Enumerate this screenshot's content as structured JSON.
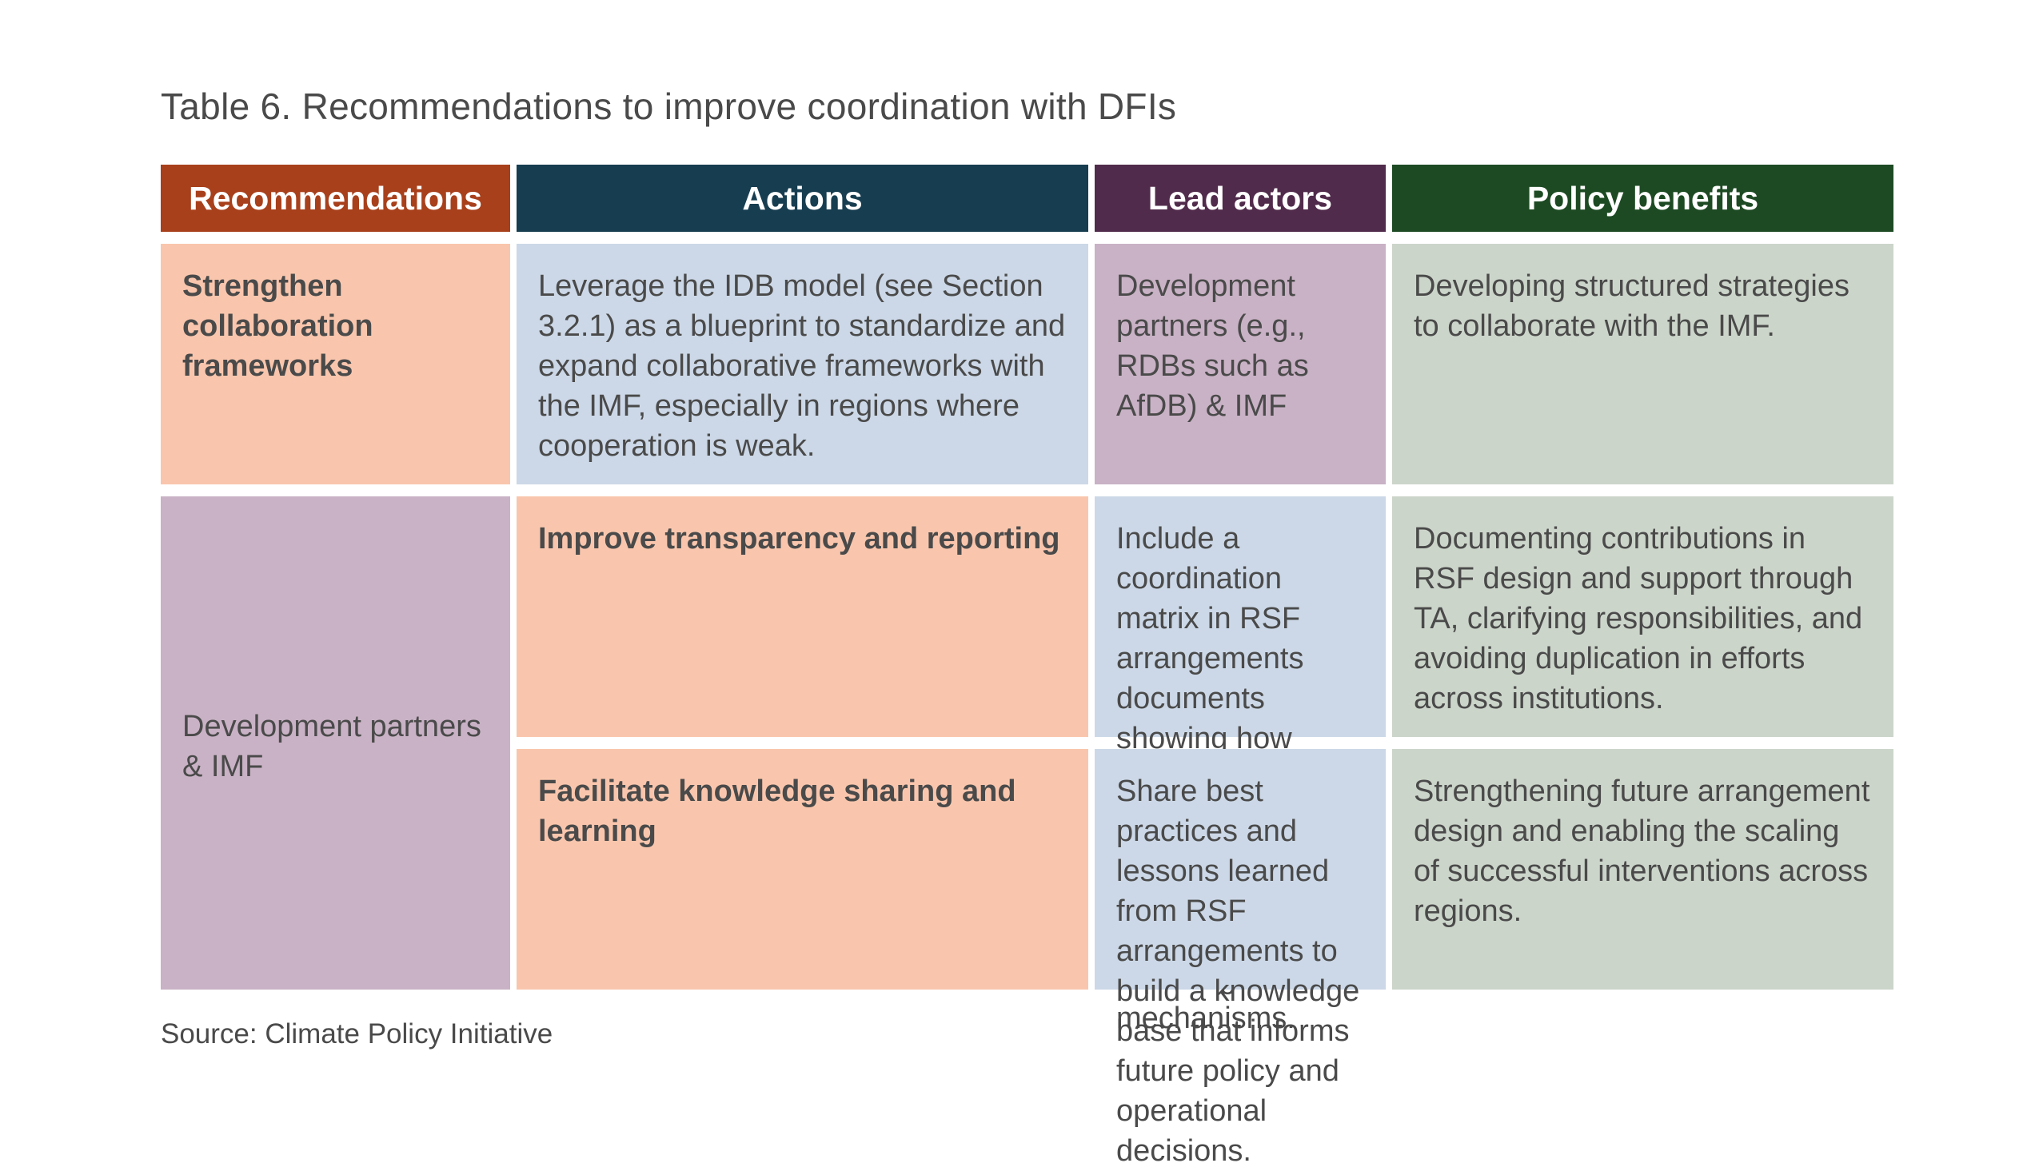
{
  "title": "Table 6. Recommendations to improve coordination with DFIs",
  "headers": {
    "recommendations": "Recommendations",
    "actions": "Actions",
    "lead_actors": "Lead actors",
    "policy_benefits": "Policy benefits"
  },
  "rows": [
    {
      "recommendation": "Strengthen collaboration frameworks",
      "action": "Leverage the IDB model (see Section 3.2.1) as a blueprint to standardize and expand collaborative frameworks with the IMF, especially in regions where cooperation is weak.",
      "lead_actors": "Development partners (e.g., RDBs such as AfDB) & IMF",
      "benefit": "Developing structured strategies to collaborate with the IMF."
    },
    {
      "recommendation": "Improve transparency and reporting",
      "action": "Include a coordination matrix in RSF arrangements documents showing how development partners support major reforms and implement standardized reporting mechanisms.",
      "benefit": "Documenting contributions in RSF design and support through TA, clarifying responsibilities, and avoiding duplication in efforts across institutions."
    },
    {
      "recommendation": "Facilitate knowledge sharing and learning",
      "action": "Share best practices and lessons learned from RSF arrangements to build a knowledge base that informs future policy and operational decisions.",
      "benefit": "Strengthening future arrangement design and enabling the scaling of successful interventions across regions."
    }
  ],
  "merged_lead_actors": "Development partners & IMF",
  "source": "Source: Climate Policy Initiative",
  "colors": {
    "recommendations_header": "#a8401c",
    "actions_header": "#173d50",
    "lead_actors_header": "#512b4b",
    "policy_benefits_header": "#1d4a23",
    "recommendations_cell": "#f9c6ad",
    "actions_cell": "#ccd8e7",
    "lead_actors_cell": "#c9b2c5",
    "policy_benefits_cell": "#ccd5ca"
  }
}
